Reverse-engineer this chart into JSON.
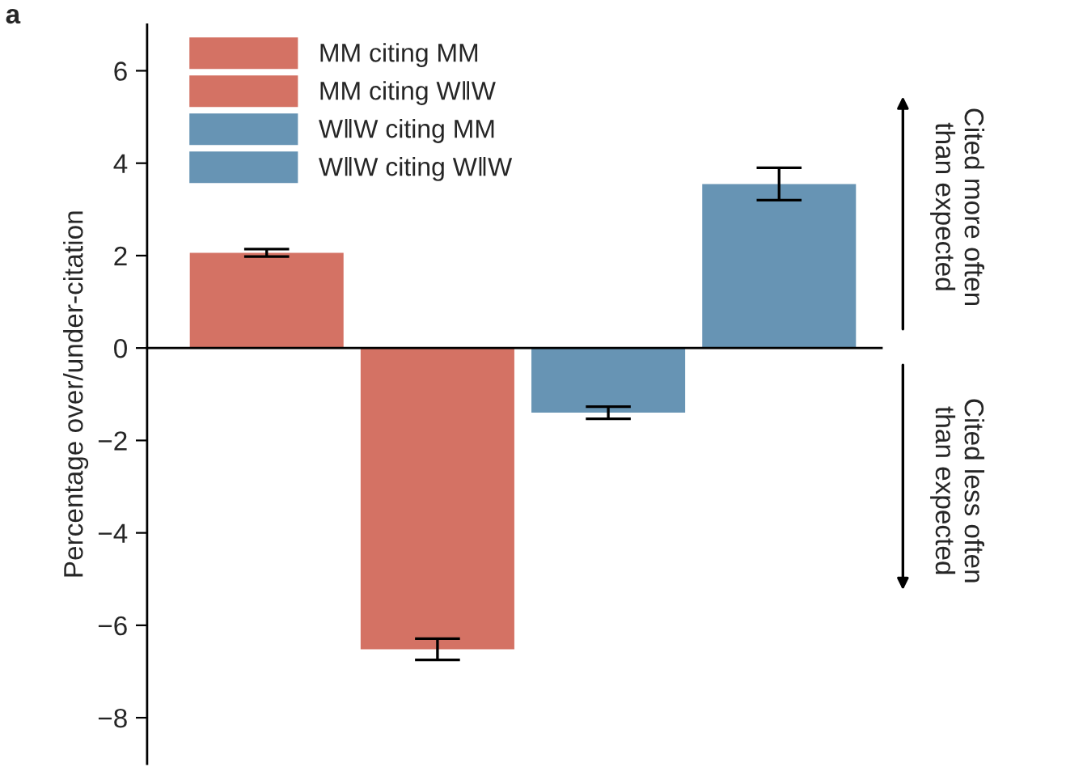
{
  "chart_data": {
    "type": "bar",
    "ylabel": "Percentage over/under-citation",
    "categories": [
      null,
      null,
      null,
      null
    ],
    "series": [
      {
        "name": "MM citing MM",
        "color": "#d47264",
        "values": [
          2.06,
          null,
          null,
          null
        ],
        "errors": [
          0.08,
          null,
          null,
          null
        ]
      },
      {
        "name": "MM citing W‖W",
        "color": "#d47264",
        "values": [
          null,
          -6.52,
          null,
          null
        ],
        "errors": [
          null,
          0.23,
          null,
          null
        ]
      },
      {
        "name": "W‖W citing MM",
        "color": "#6794b4",
        "values": [
          null,
          null,
          -1.4,
          null
        ],
        "errors": [
          null,
          null,
          0.13,
          null
        ]
      },
      {
        "name": "W‖W citing W‖W",
        "color": "#6794b4",
        "values": [
          null,
          null,
          null,
          3.55
        ],
        "errors": [
          null,
          null,
          null,
          0.35
        ]
      }
    ],
    "ylim": [
      -9,
      7
    ],
    "yticks": [
      -8,
      -6,
      -4,
      -2,
      0,
      2,
      4,
      6
    ],
    "legend": "top left",
    "annotations": [
      "a",
      "Cited more often\nthan expected",
      "Cited less often\nthan expected"
    ]
  }
}
